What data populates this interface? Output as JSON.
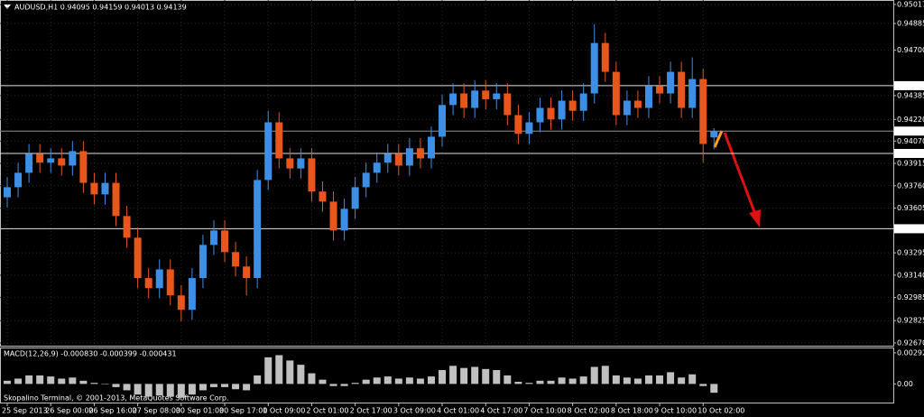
{
  "chart_data": {
    "type": "candlestick",
    "title": "AUDUSD,H1  0.94095 0.94159 0.94013 0.94139",
    "footer": "Skopalino Terminal, © 2001-2013, MetaQuotes Software Corp.",
    "categories": [
      "25 Sep 2013",
      null,
      null,
      null,
      "26 Sep 00:00",
      null,
      null,
      null,
      "26 Sep 16:00",
      null,
      null,
      null,
      "27 Sep 08:00",
      null,
      null,
      null,
      "30 Sep 01:00",
      null,
      null,
      null,
      "30 Sep 17:00",
      null,
      null,
      null,
      "1 Oct 09:00",
      null,
      null,
      null,
      "2 Oct 01:00",
      null,
      null,
      null,
      "2 Oct 17:00",
      null,
      null,
      null,
      "3 Oct 09:00",
      null,
      null,
      null,
      "4 Oct 01:00",
      null,
      null,
      null,
      "4 Oct 17:00",
      null,
      null,
      null,
      "7 Oct 10:00",
      null,
      null,
      null,
      "8 Oct 02:00",
      null,
      null,
      null,
      "8 Oct 18:00",
      null,
      null,
      null,
      "9 Oct 10:00",
      null,
      null,
      null,
      "10 Oct 02:00",
      null
    ],
    "open": [
      0.9368,
      0.9375,
      0.9385,
      0.9398,
      0.9392,
      0.9395,
      0.939,
      0.94,
      0.9378,
      0.937,
      0.9378,
      0.9355,
      0.934,
      0.9312,
      0.9305,
      0.9318,
      0.93,
      0.929,
      0.9312,
      0.9335,
      0.9345,
      0.933,
      0.932,
      0.9312,
      0.938,
      0.942,
      0.9395,
      0.9388,
      0.9395,
      0.9372,
      0.9365,
      0.9345,
      0.936,
      0.9375,
      0.9385,
      0.9392,
      0.9398,
      0.939,
      0.9402,
      0.9395,
      0.941,
      0.9432,
      0.944,
      0.943,
      0.9442,
      0.9436,
      0.944,
      0.9425,
      0.9412,
      0.942,
      0.943,
      0.9422,
      0.9435,
      0.9428,
      0.944,
      0.9475,
      0.9455,
      0.9425,
      0.9435,
      0.943,
      0.9445,
      0.944,
      0.9455,
      0.943,
      0.945,
      0.94095
    ],
    "high": [
      0.9382,
      0.9392,
      0.9405,
      0.9405,
      0.9402,
      0.9402,
      0.9407,
      0.9407,
      0.9385,
      0.9385,
      0.9385,
      0.9362,
      0.9347,
      0.9319,
      0.9325,
      0.9325,
      0.9307,
      0.9319,
      0.9342,
      0.9352,
      0.9352,
      0.9337,
      0.9327,
      0.9387,
      0.9428,
      0.9427,
      0.9402,
      0.9402,
      0.9402,
      0.9379,
      0.9372,
      0.9367,
      0.9382,
      0.9392,
      0.9399,
      0.9405,
      0.9405,
      0.9409,
      0.9409,
      0.9417,
      0.9439,
      0.9447,
      0.9447,
      0.9449,
      0.9449,
      0.9447,
      0.9447,
      0.9432,
      0.9427,
      0.9437,
      0.9437,
      0.9442,
      0.9442,
      0.9447,
      0.9488,
      0.9482,
      0.9462,
      0.9442,
      0.9442,
      0.9452,
      0.9452,
      0.9462,
      0.9462,
      0.9465,
      0.9457,
      0.94159
    ],
    "low": [
      0.9361,
      0.9368,
      0.9378,
      0.9385,
      0.9385,
      0.9383,
      0.9383,
      0.9371,
      0.9363,
      0.9363,
      0.9348,
      0.9333,
      0.9305,
      0.9298,
      0.9298,
      0.9293,
      0.9282,
      0.9283,
      0.9305,
      0.9328,
      0.9323,
      0.9313,
      0.93,
      0.9305,
      0.9373,
      0.9388,
      0.9381,
      0.9381,
      0.9365,
      0.9358,
      0.9338,
      0.9338,
      0.9353,
      0.9368,
      0.9378,
      0.9385,
      0.9383,
      0.9383,
      0.9388,
      0.9388,
      0.9403,
      0.9425,
      0.9423,
      0.9423,
      0.9429,
      0.9429,
      0.9418,
      0.9405,
      0.9405,
      0.9413,
      0.9415,
      0.9415,
      0.9421,
      0.9421,
      0.9433,
      0.9448,
      0.9418,
      0.9418,
      0.9423,
      0.9423,
      0.9433,
      0.9433,
      0.9423,
      0.9423,
      0.9392,
      0.94013
    ],
    "close": [
      0.9375,
      0.9385,
      0.9398,
      0.9392,
      0.9395,
      0.939,
      0.94,
      0.9378,
      0.937,
      0.9378,
      0.9355,
      0.934,
      0.9312,
      0.9305,
      0.9318,
      0.93,
      0.929,
      0.9312,
      0.9335,
      0.9345,
      0.933,
      0.932,
      0.9312,
      0.938,
      0.942,
      0.9395,
      0.9388,
      0.9395,
      0.9372,
      0.9365,
      0.9345,
      0.936,
      0.9375,
      0.9385,
      0.9392,
      0.9398,
      0.939,
      0.9402,
      0.9395,
      0.941,
      0.9432,
      0.944,
      0.943,
      0.9442,
      0.9436,
      0.944,
      0.9425,
      0.9412,
      0.942,
      0.943,
      0.9422,
      0.9435,
      0.9428,
      0.944,
      0.9475,
      0.9455,
      0.9425,
      0.9435,
      0.943,
      0.9445,
      0.944,
      0.9455,
      0.943,
      0.945,
      0.9405,
      0.94139
    ],
    "up_color": "#3d8fe6",
    "down_color": "#e8561e",
    "ylim": [
      0.92651,
      0.95048
    ],
    "yticks": [
      0.95017,
      0.94885,
      {
        "value": 0.947,
        "label": "0.94700"
      },
      0.94454,
      0.94385,
      {
        "value": 0.9422,
        "label": "0.94220"
      },
      0.94139,
      {
        "value": 0.9407,
        "label": "0.94070"
      },
      0.93984,
      0.93915,
      {
        "value": 0.9376,
        "label": "0.93760"
      },
      0.93605,
      0.93462,
      0.93295,
      {
        "value": 0.9314,
        "label": "0.93140"
      },
      0.92985,
      0.92825,
      {
        "value": 0.9267,
        "label": "0.92670"
      }
    ],
    "hlines": [
      0.94454,
      0.94139,
      0.93984,
      0.93462
    ],
    "grid": true,
    "macd": {
      "label": "MACD(12,26,9) -0.000830 -0.000399 -0.000431",
      "values": [
        0.0003,
        0.0005,
        0.0008,
        0.0008,
        0.0007,
        0.0005,
        0.0006,
        0.0003,
        0.0001,
        0,
        -0.0003,
        -0.0006,
        -0.001,
        -0.0012,
        -0.0011,
        -0.0012,
        -0.0013,
        -0.001,
        -0.0006,
        -0.0003,
        -0.0003,
        -0.0005,
        -0.0006,
        0.0008,
        0.0025,
        0.0027,
        0.0022,
        0.0018,
        0.001,
        0.0004,
        -0.0002,
        -0.0002,
        0.0001,
        0.0004,
        0.0006,
        0.0007,
        0.0005,
        0.0006,
        0.0005,
        0.0007,
        0.0013,
        0.0017,
        0.0015,
        0.0016,
        0.0014,
        0.0013,
        0.0008,
        0.0002,
        0.0001,
        0.0003,
        0.0003,
        0.0006,
        0.0005,
        0.0007,
        0.0016,
        0.0017,
        0.0008,
        0.0006,
        0.0005,
        0.0008,
        0.0008,
        0.0011,
        0.0006,
        0.0009,
        -0.0002,
        -0.00083
      ],
      "color": "#c0c0c0",
      "ylim": [
        -0.001836,
        0.003422
      ],
      "yticks": [
        0.002921,
        {
          "value": 0,
          "label": "0.00"
        }
      ]
    }
  }
}
